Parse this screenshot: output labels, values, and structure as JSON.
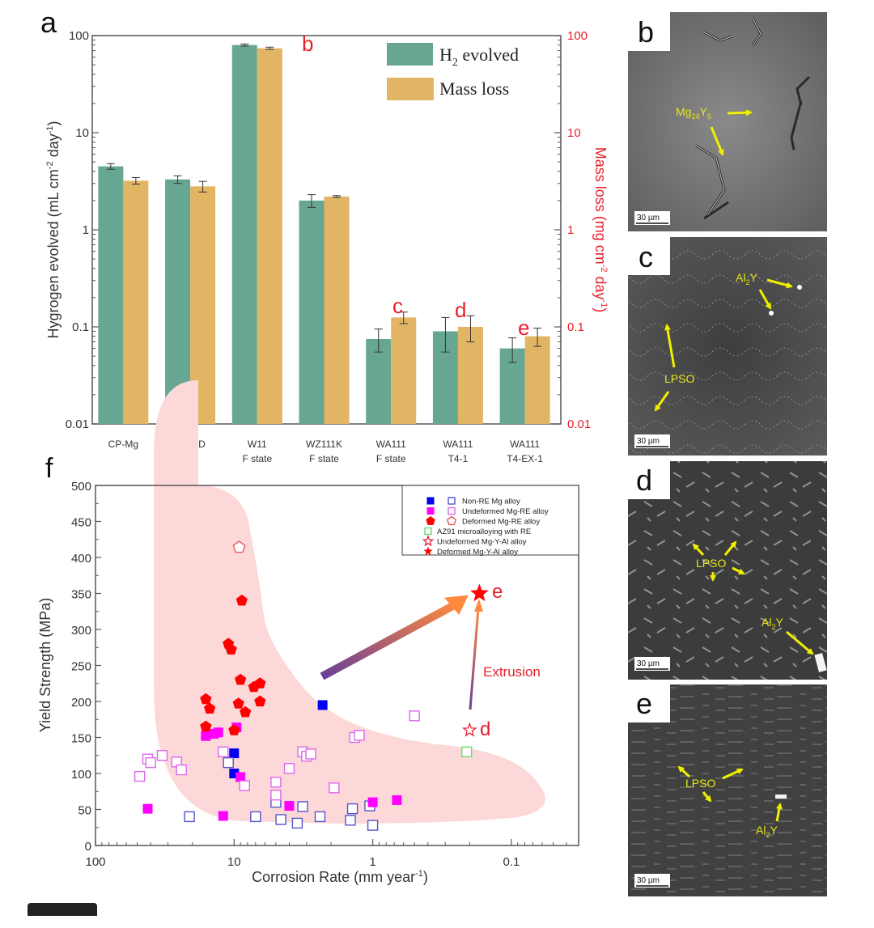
{
  "panels": {
    "a": "a",
    "b": "b",
    "c": "c",
    "d": "d",
    "e": "e",
    "f": "f"
  },
  "chart_data": [
    {
      "id": "a",
      "type": "bar",
      "title": "",
      "xlabel": "",
      "ylabel": "Hygrogen evolved (mL cm⁻² day⁻¹)",
      "ylabel_right": "Mass loss (mg cm⁻² day⁻¹)",
      "yscale": "log",
      "ylim": [
        0.01,
        100
      ],
      "yticks": [
        "0.01",
        "0.1",
        "1",
        "10",
        "100"
      ],
      "yticks_right": [
        "0.01",
        "0.1",
        "1",
        "10",
        "100"
      ],
      "categories": [
        [
          "CP-Mg"
        ],
        [
          "AZ91D"
        ],
        [
          "W11",
          "F state"
        ],
        [
          "WZ111K",
          "F state"
        ],
        [
          "WA111",
          "F state"
        ],
        [
          "WA111",
          "T4-1"
        ],
        [
          "WA111",
          "T4-EX-1"
        ]
      ],
      "series": [
        {
          "name": "H₂ evolved",
          "color": "#66a693",
          "values": [
            4.5,
            3.3,
            80,
            2.0,
            0.075,
            0.09,
            0.06
          ],
          "errors": [
            0.3,
            0.3,
            2,
            0.3,
            0.02,
            0.035,
            0.017
          ]
        },
        {
          "name": "Mass loss",
          "color": "#e2b565",
          "values": [
            3.2,
            2.8,
            74,
            2.2,
            0.125,
            0.1,
            0.08
          ],
          "errors": [
            0.25,
            0.35,
            2,
            0.05,
            0.017,
            0.03,
            0.017
          ]
        }
      ],
      "annotations": [
        {
          "text": "b",
          "category": 2
        },
        {
          "text": "c",
          "category": 4
        },
        {
          "text": "d",
          "category": 5
        },
        {
          "text": "e",
          "category": 6
        }
      ],
      "legend": "top-right"
    },
    {
      "id": "f",
      "type": "scatter",
      "xlabel": "Corrosion Rate (mm year⁻¹)",
      "ylabel": "Yield Strength (MPa)",
      "xscale": "log",
      "xreversed": true,
      "xlim": [
        100,
        0.033
      ],
      "ylim": [
        0,
        500
      ],
      "xticks": [
        "100",
        "10",
        "1",
        "0.1"
      ],
      "yticks": [
        "0",
        "50",
        "100",
        "150",
        "200",
        "250",
        "300",
        "350",
        "400",
        "450",
        "500"
      ],
      "legend": "top-right",
      "series": [
        {
          "name": "Non-RE Mg alloy (filled)",
          "legend_group": 0,
          "marker": "square",
          "filled": true,
          "color": "#0000ee",
          "points": [
            [
              2.3,
              195
            ],
            [
              10,
              128
            ],
            [
              10,
              100
            ]
          ]
        },
        {
          "name": "Non-RE Mg alloy",
          "marker": "square",
          "filled": false,
          "color": "#5555cc",
          "points": [
            [
              21,
              40
            ],
            [
              11,
              115
            ],
            [
              7,
              40
            ],
            [
              5,
              60
            ],
            [
              4.6,
              36
            ],
            [
              3.5,
              31
            ],
            [
              3.2,
              54
            ],
            [
              2.4,
              40
            ],
            [
              1.45,
              35
            ],
            [
              1.4,
              51
            ],
            [
              1.05,
              55
            ],
            [
              1,
              28
            ]
          ]
        },
        {
          "name": "Undeformed Mg-RE alloy (filled)",
          "marker": "square",
          "filled": true,
          "color": "#ff00ff",
          "points": [
            [
              42,
              51
            ],
            [
              16,
              152
            ],
            [
              14,
              155
            ],
            [
              13,
              157
            ],
            [
              12,
              41
            ],
            [
              9.6,
              164
            ],
            [
              9,
              95
            ],
            [
              4,
              55
            ],
            [
              1,
              60
            ],
            [
              0.67,
              63
            ]
          ]
        },
        {
          "name": "Undeformed Mg-RE alloy",
          "marker": "square",
          "filled": false,
          "color": "#dd66ee",
          "points": [
            [
              48,
              96
            ],
            [
              42,
              120
            ],
            [
              40,
              115
            ],
            [
              33,
              125
            ],
            [
              26,
              116
            ],
            [
              24,
              105
            ],
            [
              12,
              130
            ],
            [
              8.4,
              83
            ],
            [
              5,
              88
            ],
            [
              5,
              70
            ],
            [
              4,
              107
            ],
            [
              3.2,
              130
            ],
            [
              3,
              124
            ],
            [
              2.8,
              127
            ],
            [
              1.9,
              80
            ],
            [
              1.35,
              150
            ],
            [
              1.25,
              153
            ],
            [
              0.5,
              180
            ]
          ]
        },
        {
          "name": "Deformed Mg-RE alloy (filled)",
          "marker": "pentagon",
          "filled": true,
          "color": "#ff0000",
          "points": [
            [
              8.8,
              340
            ],
            [
              11,
              280
            ],
            [
              10.5,
              272
            ],
            [
              9,
              230
            ],
            [
              7.2,
              220
            ],
            [
              6.5,
              225
            ],
            [
              6.5,
              200
            ],
            [
              16,
              203
            ],
            [
              15,
              190
            ],
            [
              9.3,
              197
            ],
            [
              8.3,
              185
            ],
            [
              16,
              165
            ],
            [
              10,
              160
            ]
          ]
        },
        {
          "name": "Deformed Mg-RE alloy",
          "marker": "pentagon",
          "filled": false,
          "color": "#e85a5a",
          "points": [
            [
              9.2,
              414
            ]
          ]
        },
        {
          "name": "AZ91 microalloying with RE",
          "marker": "square",
          "filled": false,
          "color": "#66dd66",
          "points": [
            [
              0.21,
              130
            ]
          ]
        },
        {
          "name": "Undeformed Mg-Y-Al alloy",
          "marker": "star",
          "filled": false,
          "color": "#e8202a",
          "points": [
            [
              0.2,
              160
            ]
          ]
        },
        {
          "name": "Deformed Mg-Y-Al alloy",
          "marker": "star",
          "filled": true,
          "color": "#ff0000",
          "points": [
            [
              0.17,
              350
            ]
          ]
        }
      ],
      "legend_entries": [
        "Non-RE Mg alloy",
        "Undeformed Mg-RE alloy",
        "Deformed Mg-RE alloy",
        "AZ91 microalloying with RE",
        "Undeformed Mg-Y-Al alloy",
        "Deformed Mg-Y-Al alloy"
      ],
      "annotations": [
        {
          "text": "e",
          "x": 0.17,
          "y": 350
        },
        {
          "text": "d",
          "x": 0.2,
          "y": 160
        },
        {
          "text": "Extrusion",
          "x": 0.12,
          "y": 250
        }
      ],
      "arrows": [
        {
          "from": [
            2.2,
            232
          ],
          "to": [
            0.19,
            345
          ],
          "style": "gradient-thick"
        },
        {
          "from": [
            0.205,
            178
          ],
          "to": [
            0.175,
            343
          ],
          "style": "gradient-thin"
        }
      ]
    }
  ],
  "micrographs": [
    {
      "panel": "b",
      "labels": [
        "Mg₂₄Y₅"
      ],
      "scale_bar": "30 µm"
    },
    {
      "panel": "c",
      "labels": [
        "Al₂Y",
        "LPSO"
      ],
      "scale_bar": "30 µm"
    },
    {
      "panel": "d",
      "labels": [
        "LPSO",
        "Al₂Y"
      ],
      "scale_bar": "30 µm"
    },
    {
      "panel": "e",
      "labels": [
        "LPSO",
        "Al₂Y"
      ],
      "scale_bar": "30 µm"
    }
  ],
  "text": {
    "legend_a_h2": "H",
    "legend_a_h2_sub": "2",
    "legend_a_h2_rest": " evolved",
    "legend_a_mass": "Mass loss",
    "ylabel_a_main": "Hygrogen evolved (mL cm",
    "ylabel_a_sup1": "-2",
    "ylabel_a_mid": " day",
    "ylabel_a_sup2": "-1",
    "ylabel_a_end": ")",
    "ylabel_a_right_main": "Mass loss (mg cm",
    "xlabel_f_main": "Corrosion Rate (mm year",
    "ylabel_f": "Yield Strength (MPa)",
    "extrusion": "Extrusion",
    "mg24y5_main": "Mg",
    "mg24y5_sub1": "24",
    "mg24y5_y": "Y",
    "mg24y5_sub2": "5",
    "al2y_main": "Al",
    "al2y_sub": "2",
    "al2y_y": "Y",
    "lpso": "LPSO",
    "scale_bar": "30 µm"
  }
}
